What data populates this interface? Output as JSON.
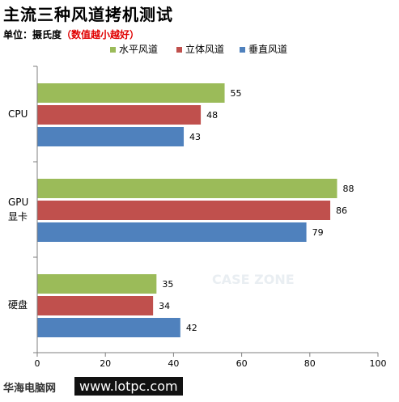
{
  "header": {
    "title": "主流三种风道拷机测试",
    "unit_label": "单位：摄氏度",
    "unit_note": "（数值越小越好）"
  },
  "watermark": {
    "text": "CASE ZONE"
  },
  "footer": {
    "site_name": "华海电脑网",
    "url": "www.lotpc.com"
  },
  "colors": {
    "series_0": "#9bbb59",
    "series_1": "#c0504d",
    "series_2": "#4f81bd"
  },
  "chart_data": {
    "type": "bar",
    "orientation": "horizontal",
    "categories": [
      "CPU",
      "GPU\n显卡",
      "硬盘"
    ],
    "series": [
      {
        "name": "水平风道",
        "values": [
          55,
          88,
          35
        ]
      },
      {
        "name": "立体风道",
        "values": [
          48,
          86,
          34
        ]
      },
      {
        "name": "垂直风道",
        "values": [
          43,
          79,
          42
        ]
      }
    ],
    "xlim": [
      0,
      100
    ],
    "xticks": [
      0,
      20,
      40,
      60,
      80,
      100
    ],
    "grid": false,
    "legend_position": "top"
  }
}
